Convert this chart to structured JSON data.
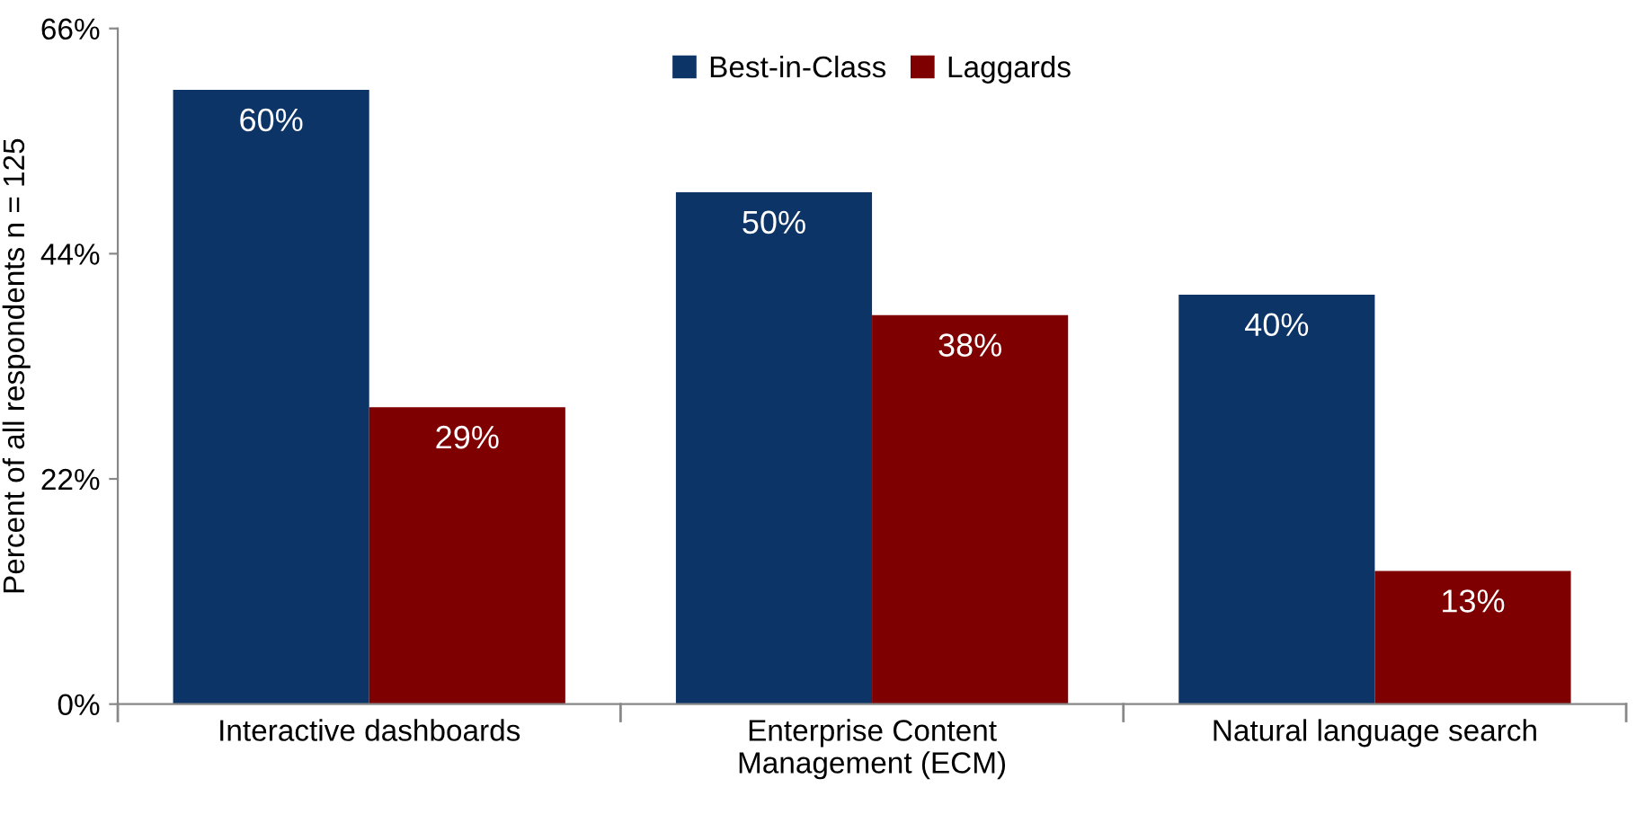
{
  "chart_data": {
    "type": "bar",
    "ylabel": "Percent of all respondents n = 125",
    "categories": [
      "Interactive dashboards",
      "Enterprise Content\nManagement (ECM)",
      "Natural language search"
    ],
    "series": [
      {
        "name": "Best-in-Class",
        "color": "#0d3466",
        "values": [
          60,
          50,
          40
        ],
        "value_labels": [
          "60%",
          "50%",
          "40%"
        ]
      },
      {
        "name": "Laggards",
        "color": "#7f0000",
        "values": [
          29,
          38,
          13
        ],
        "value_labels": [
          "29%",
          "38%",
          "13%"
        ]
      }
    ],
    "ylim": [
      0,
      66
    ],
    "yticks": [
      {
        "value": 0,
        "label": "0%"
      },
      {
        "value": 22,
        "label": "22%"
      },
      {
        "value": 44,
        "label": "44%"
      },
      {
        "value": 66,
        "label": "66%"
      }
    ],
    "grid": false,
    "legend": "top"
  }
}
